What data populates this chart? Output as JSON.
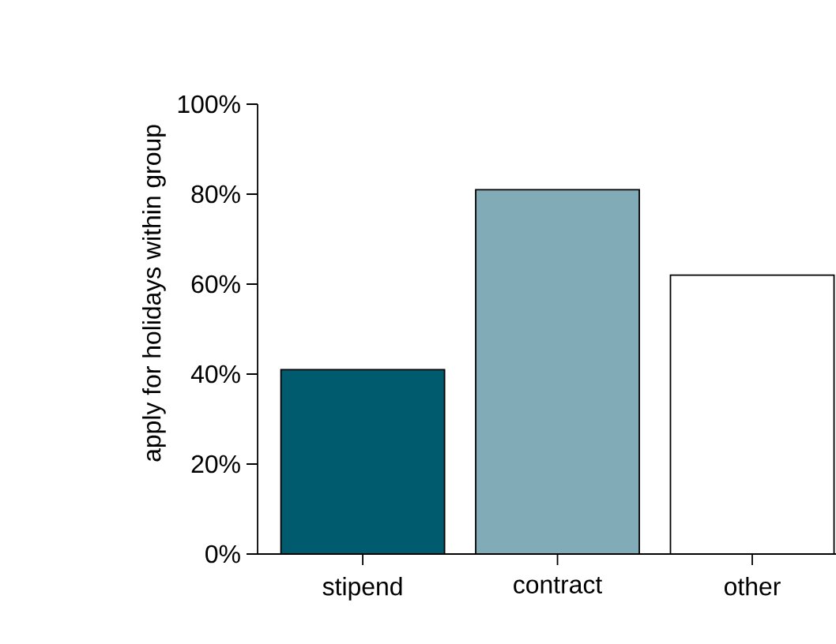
{
  "chart_data": {
    "type": "bar",
    "ylabel": "apply for holidays within group",
    "categories": [
      "stipend",
      "contract",
      "other"
    ],
    "values": [
      41,
      81,
      62
    ],
    "colors": [
      "#005b6e",
      "#82abb8",
      "#ffffff"
    ],
    "ylim": [
      0,
      100
    ],
    "yticks": [
      {
        "value": 0,
        "label": "0%"
      },
      {
        "value": 20,
        "label": "20%"
      },
      {
        "value": 40,
        "label": "40%"
      },
      {
        "value": 60,
        "label": "60%"
      },
      {
        "value": 80,
        "label": "80%"
      },
      {
        "value": 100,
        "label": "100%"
      }
    ],
    "grid": false
  }
}
